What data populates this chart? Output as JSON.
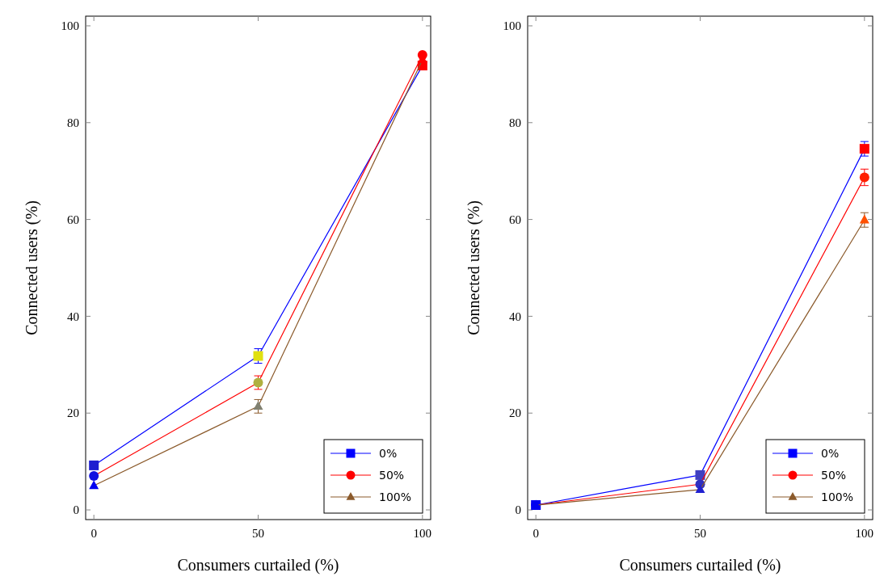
{
  "chart_data": [
    {
      "type": "line",
      "xlabel": "Consumers curtailed (%)",
      "ylabel": "Connected users (%)",
      "x": [
        0,
        50,
        100
      ],
      "xlim": [
        -2.5,
        102.5
      ],
      "ylim": [
        -2,
        102
      ],
      "xticks": [
        0,
        50,
        100
      ],
      "yticks": [
        0,
        20,
        40,
        60,
        80,
        100
      ],
      "grid": false,
      "legend": "bottom right",
      "series": [
        {
          "name": "0%",
          "color": "#0000ff",
          "marker": "square",
          "values": [
            9.2,
            31.8,
            91.8
          ],
          "errors": [
            0.4,
            1.5,
            null
          ],
          "colors": [
            "#2020d0",
            "#e0e010",
            "#ff0000"
          ]
        },
        {
          "name": "50%",
          "color": "#ff0000",
          "marker": "circle",
          "values": [
            7.0,
            26.3,
            94.0
          ],
          "errors": [
            0.4,
            1.4,
            null
          ],
          "colors": [
            "#1010e0",
            "#b0b040",
            "#ff0000"
          ]
        },
        {
          "name": "100%",
          "color": "#8b5a2b",
          "marker": "triangle",
          "values": [
            5.0,
            21.4,
            93.0
          ],
          "errors": [
            null,
            1.4,
            null
          ],
          "colors": [
            "#0000f0",
            "#808070",
            "#ff0000"
          ]
        }
      ]
    },
    {
      "type": "line",
      "xlabel": "Consumers curtailed (%)",
      "ylabel": "Connected users (%)",
      "x": [
        0,
        50,
        100
      ],
      "xlim": [
        -2.5,
        102.5
      ],
      "ylim": [
        -2,
        102
      ],
      "xticks": [
        0,
        50,
        100
      ],
      "yticks": [
        0,
        20,
        40,
        60,
        80,
        100
      ],
      "grid": false,
      "legend": "bottom right",
      "series": [
        {
          "name": "0%",
          "color": "#0000ff",
          "marker": "square",
          "values": [
            1.0,
            7.2,
            74.6
          ],
          "errors": [
            null,
            null,
            1.5
          ],
          "colors": [
            "#0000f0",
            "#4040c0",
            "#ff0000"
          ]
        },
        {
          "name": "50%",
          "color": "#ff0000",
          "marker": "circle",
          "values": [
            1.0,
            5.3,
            68.7
          ],
          "errors": [
            null,
            null,
            1.7
          ],
          "colors": [
            "#0000f0",
            "#3030c0",
            "#ff2000"
          ]
        },
        {
          "name": "100%",
          "color": "#8b5a2b",
          "marker": "triangle",
          "values": [
            1.0,
            4.2,
            59.9
          ],
          "errors": [
            null,
            null,
            1.5
          ],
          "colors": [
            "#0000f0",
            "#2020d0",
            "#ff5000"
          ]
        }
      ]
    }
  ]
}
